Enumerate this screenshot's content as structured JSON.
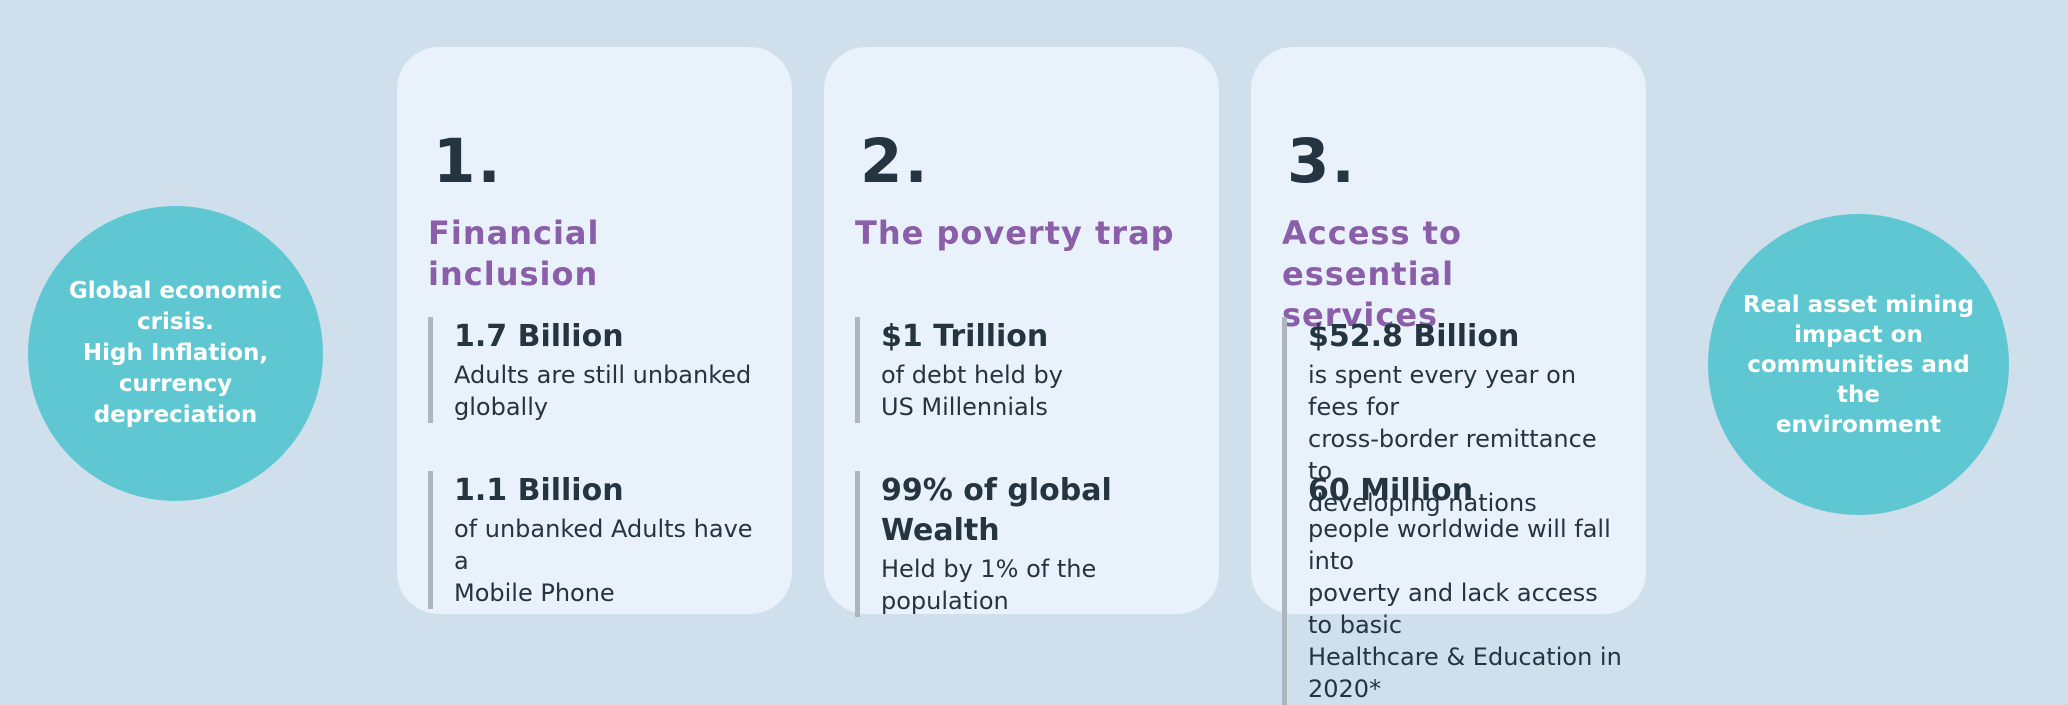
{
  "palette": {
    "background": "#cfdfeb",
    "card_background": "#e9f2fa",
    "accent_teal": "#5fc7d2",
    "accent_purple": "#8a5ea8",
    "text_dark": "#243441",
    "stat_bar_gray": "#aeb6bd",
    "circle_text": "#ffffff"
  },
  "circles": {
    "left": {
      "text": "Global economic\ncrisis.\nHigh Inflation,\ncurrency\ndepreciation"
    },
    "right": {
      "text": "Real asset  mining\nimpact on\ncommunities and the\nenvironment"
    }
  },
  "cards": [
    {
      "number": "1.",
      "title": "Financial inclusion",
      "stats": [
        {
          "value": "1.7 Billion",
          "description": "Adults are still unbanked\nglobally"
        },
        {
          "value": "1.1 Billion",
          "description": "of unbanked Adults have a\nMobile Phone"
        }
      ]
    },
    {
      "number": "2.",
      "title": "The poverty trap",
      "stats": [
        {
          "value": "$1 Trillion",
          "description": "of debt held by\nUS Millennials"
        },
        {
          "value": "99% of global Wealth",
          "description": "Held by 1% of the\npopulation"
        }
      ]
    },
    {
      "number": "3.",
      "title": "Access to essential\nservices",
      "stats": [
        {
          "value": "$52.8 Billion",
          "description": "is spent every year on fees for\ncross-border remittance to\ndeveloping nations"
        },
        {
          "value": "60 Million",
          "description": "people worldwide will fall into\npoverty and lack access to basic\nHealthcare & Education in 2020*"
        }
      ]
    }
  ]
}
